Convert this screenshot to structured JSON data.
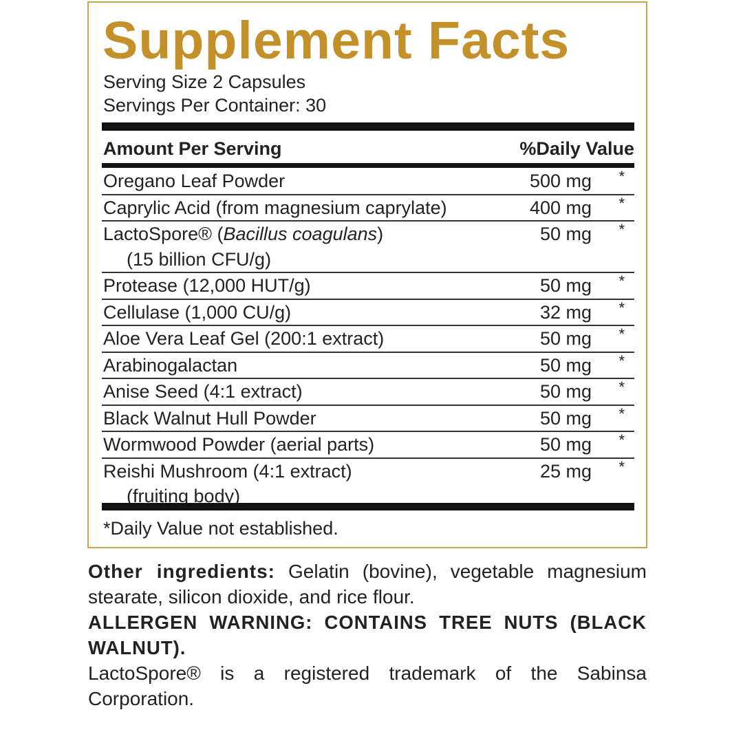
{
  "title": "Supplement Facts",
  "serving_size": "Serving Size 2 Capsules",
  "servings_per_container": "Servings Per Container: 30",
  "header": {
    "amount": "Amount Per Serving",
    "dv": "%Daily Value"
  },
  "rows": [
    {
      "name": "Oregano Leaf Powder",
      "amount": "500 mg",
      "dv": "*"
    },
    {
      "name": "Caprylic Acid (from magnesium caprylate)",
      "amount": "400 mg",
      "dv": "*"
    },
    {
      "name": "LactoSpore® (",
      "name_italic": "Bacillus coagulans",
      "name_end": ")",
      "sub": "(15 billion CFU/g)",
      "amount": "50 mg",
      "dv": "*"
    },
    {
      "name": "Protease (12,000 HUT/g)",
      "amount": "50 mg",
      "dv": "*"
    },
    {
      "name": "Cellulase (1,000 CU/g)",
      "amount": "32 mg",
      "dv": "*"
    },
    {
      "name": "Aloe Vera Leaf Gel (200:1 extract)",
      "amount": "50 mg",
      "dv": "*"
    },
    {
      "name": "Arabinogalactan",
      "amount": "50 mg",
      "dv": "*"
    },
    {
      "name": "Anise Seed (4:1 extract)",
      "amount": "50 mg",
      "dv": "*"
    },
    {
      "name": "Black Walnut Hull Powder",
      "amount": "50 mg",
      "dv": "*"
    },
    {
      "name": "Wormwood Powder (aerial parts)",
      "amount": "50 mg",
      "dv": "*"
    },
    {
      "name": "Reishi Mushroom (4:1 extract)",
      "sub": "(fruiting body)",
      "amount": "25 mg",
      "dv": "*"
    }
  ],
  "footnote": "*Daily Value not established.",
  "other_label": "Other ingredients:",
  "other_text": " Gelatin (bovine), vegetable magnesium stearate, silicon dioxide, and rice flour.",
  "allergen": "ALLERGEN WARNING: CONTAINS TREE NUTS (BLACK WALNUT).",
  "trademark": "LactoSpore® is a registered trademark of the Sabinsa Corporation.",
  "colors": {
    "title": "#c4902a",
    "border": "#c9a44a",
    "text": "#222222"
  }
}
